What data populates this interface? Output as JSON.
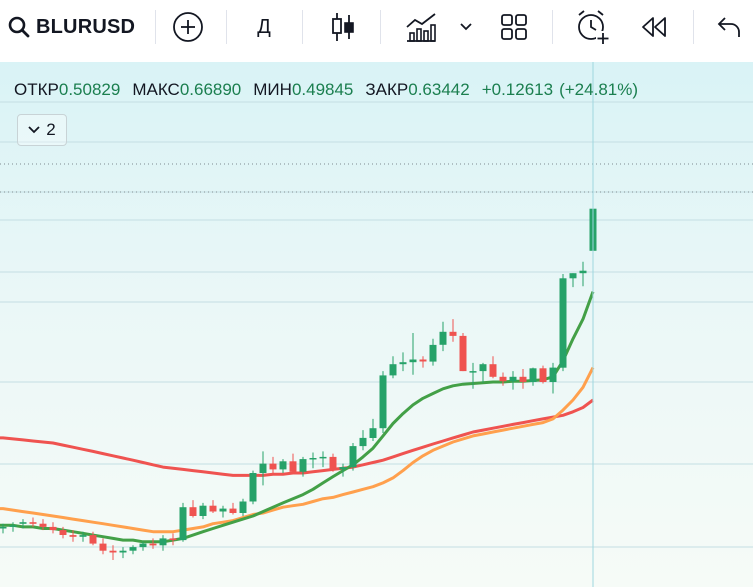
{
  "toolbar": {
    "symbol": "BLURUSD",
    "interval": "Д"
  },
  "legend": {
    "open_label": "ОТКР",
    "open_value": "0.50829",
    "high_label": "МАКС",
    "high_value": "0.66890",
    "low_label": "МИН",
    "low_value": "0.49845",
    "close_label": "ЗАКР",
    "close_value": "0.63442",
    "change": "+0.12613",
    "change_pct": "(+24.81%)"
  },
  "indicators_button": {
    "count": "2"
  },
  "colors": {
    "up": "#26a269",
    "down": "#ef5350",
    "ma_fast": "#43a047",
    "ma_mid": "#ffa04d",
    "ma_slow": "#ef5350"
  },
  "chart_data": {
    "type": "candlestick",
    "symbol": "BLURUSD",
    "last_candle": {
      "open": 0.50829,
      "high": 0.6689,
      "low": 0.49845,
      "close": 0.63442
    },
    "candles": [
      [
        0.118,
        0.121,
        0.115,
        0.119
      ],
      [
        0.119,
        0.122,
        0.116,
        0.12
      ],
      [
        0.121,
        0.124,
        0.118,
        0.122
      ],
      [
        0.122,
        0.125,
        0.119,
        0.121
      ],
      [
        0.121,
        0.124,
        0.117,
        0.119
      ],
      [
        0.119,
        0.122,
        0.115,
        0.117
      ],
      [
        0.117,
        0.119,
        0.112,
        0.114
      ],
      [
        0.114,
        0.117,
        0.11,
        0.113
      ],
      [
        0.113,
        0.116,
        0.11,
        0.114
      ],
      [
        0.114,
        0.116,
        0.108,
        0.109
      ],
      [
        0.109,
        0.112,
        0.103,
        0.105
      ],
      [
        0.105,
        0.108,
        0.1,
        0.104
      ],
      [
        0.104,
        0.107,
        0.101,
        0.105
      ],
      [
        0.105,
        0.108,
        0.103,
        0.107
      ],
      [
        0.107,
        0.11,
        0.105,
        0.109
      ],
      [
        0.109,
        0.112,
        0.106,
        0.108
      ],
      [
        0.108,
        0.114,
        0.105,
        0.112
      ],
      [
        0.112,
        0.115,
        0.108,
        0.111
      ],
      [
        0.111,
        0.135,
        0.11,
        0.132
      ],
      [
        0.132,
        0.137,
        0.125,
        0.126
      ],
      [
        0.126,
        0.135,
        0.124,
        0.133
      ],
      [
        0.133,
        0.137,
        0.128,
        0.129
      ],
      [
        0.129,
        0.133,
        0.125,
        0.131
      ],
      [
        0.131,
        0.135,
        0.127,
        0.128
      ],
      [
        0.128,
        0.138,
        0.126,
        0.136
      ],
      [
        0.136,
        0.16,
        0.134,
        0.158
      ],
      [
        0.158,
        0.177,
        0.148,
        0.166
      ],
      [
        0.166,
        0.172,
        0.156,
        0.161
      ],
      [
        0.161,
        0.17,
        0.158,
        0.168
      ],
      [
        0.168,
        0.175,
        0.157,
        0.159
      ],
      [
        0.159,
        0.172,
        0.155,
        0.17
      ],
      [
        0.17,
        0.176,
        0.162,
        0.171
      ],
      [
        0.171,
        0.177,
        0.163,
        0.172
      ],
      [
        0.172,
        0.175,
        0.159,
        0.161
      ],
      [
        0.161,
        0.166,
        0.155,
        0.163
      ],
      [
        0.163,
        0.185,
        0.16,
        0.182
      ],
      [
        0.182,
        0.198,
        0.178,
        0.19
      ],
      [
        0.19,
        0.21,
        0.187,
        0.2
      ],
      [
        0.2,
        0.27,
        0.195,
        0.264
      ],
      [
        0.264,
        0.292,
        0.26,
        0.28
      ],
      [
        0.28,
        0.298,
        0.27,
        0.283
      ],
      [
        0.283,
        0.33,
        0.265,
        0.287
      ],
      [
        0.287,
        0.292,
        0.275,
        0.284
      ],
      [
        0.284,
        0.32,
        0.278,
        0.31
      ],
      [
        0.31,
        0.35,
        0.3,
        0.332
      ],
      [
        0.332,
        0.355,
        0.315,
        0.325
      ],
      [
        0.325,
        0.33,
        0.27,
        0.27
      ],
      [
        0.27,
        0.282,
        0.246,
        0.27
      ],
      [
        0.27,
        0.282,
        0.254,
        0.28
      ],
      [
        0.28,
        0.292,
        0.26,
        0.262
      ],
      [
        0.262,
        0.268,
        0.25,
        0.256
      ],
      [
        0.256,
        0.27,
        0.245,
        0.262
      ],
      [
        0.262,
        0.273,
        0.246,
        0.255
      ],
      [
        0.255,
        0.275,
        0.25,
        0.274
      ],
      [
        0.274,
        0.278,
        0.253,
        0.255
      ],
      [
        0.255,
        0.282,
        0.24,
        0.275
      ],
      [
        0.275,
        0.45,
        0.27,
        0.44
      ],
      [
        0.44,
        0.452,
        0.42,
        0.452
      ],
      [
        0.452,
        0.48,
        0.422,
        0.458
      ],
      [
        0.50829,
        0.6689,
        0.49845,
        0.63442
      ]
    ],
    "ma_fast": [
      0.12,
      0.12,
      0.119,
      0.119,
      0.118,
      0.118,
      0.117,
      0.116,
      0.115,
      0.114,
      0.113,
      0.112,
      0.111,
      0.111,
      0.11,
      0.11,
      0.11,
      0.111,
      0.112,
      0.114,
      0.116,
      0.118,
      0.12,
      0.122,
      0.124,
      0.126,
      0.129,
      0.132,
      0.135,
      0.138,
      0.141,
      0.145,
      0.15,
      0.155,
      0.16,
      0.165,
      0.172,
      0.18,
      0.192,
      0.205,
      0.216,
      0.226,
      0.234,
      0.24,
      0.246,
      0.25,
      0.252,
      0.253,
      0.254,
      0.255,
      0.255,
      0.256,
      0.256,
      0.257,
      0.258,
      0.262,
      0.285,
      0.32,
      0.355,
      0.41
    ],
    "ma_mid": [
      0.131,
      0.13,
      0.129,
      0.128,
      0.127,
      0.126,
      0.125,
      0.124,
      0.123,
      0.122,
      0.121,
      0.12,
      0.119,
      0.118,
      0.117,
      0.116,
      0.116,
      0.116,
      0.117,
      0.118,
      0.119,
      0.121,
      0.122,
      0.123,
      0.125,
      0.127,
      0.128,
      0.13,
      0.132,
      0.133,
      0.134,
      0.136,
      0.138,
      0.139,
      0.141,
      0.143,
      0.145,
      0.147,
      0.15,
      0.154,
      0.16,
      0.167,
      0.173,
      0.178,
      0.182,
      0.186,
      0.189,
      0.192,
      0.194,
      0.196,
      0.198,
      0.2,
      0.202,
      0.204,
      0.206,
      0.21,
      0.22,
      0.232,
      0.248,
      0.275
    ],
    "ma_slow": [
      0.19,
      0.189,
      0.188,
      0.187,
      0.186,
      0.185,
      0.183,
      0.181,
      0.179,
      0.177,
      0.175,
      0.173,
      0.171,
      0.169,
      0.167,
      0.165,
      0.163,
      0.162,
      0.161,
      0.16,
      0.159,
      0.158,
      0.157,
      0.156,
      0.156,
      0.156,
      0.156,
      0.157,
      0.157,
      0.158,
      0.158,
      0.159,
      0.16,
      0.161,
      0.162,
      0.163,
      0.165,
      0.167,
      0.169,
      0.172,
      0.175,
      0.178,
      0.181,
      0.184,
      0.187,
      0.19,
      0.193,
      0.196,
      0.198,
      0.2,
      0.202,
      0.204,
      0.206,
      0.208,
      0.21,
      0.212,
      0.214,
      0.218,
      0.223,
      0.232
    ],
    "price_range": [
      0.09,
      0.7
    ],
    "scale": "log",
    "grid": true
  }
}
